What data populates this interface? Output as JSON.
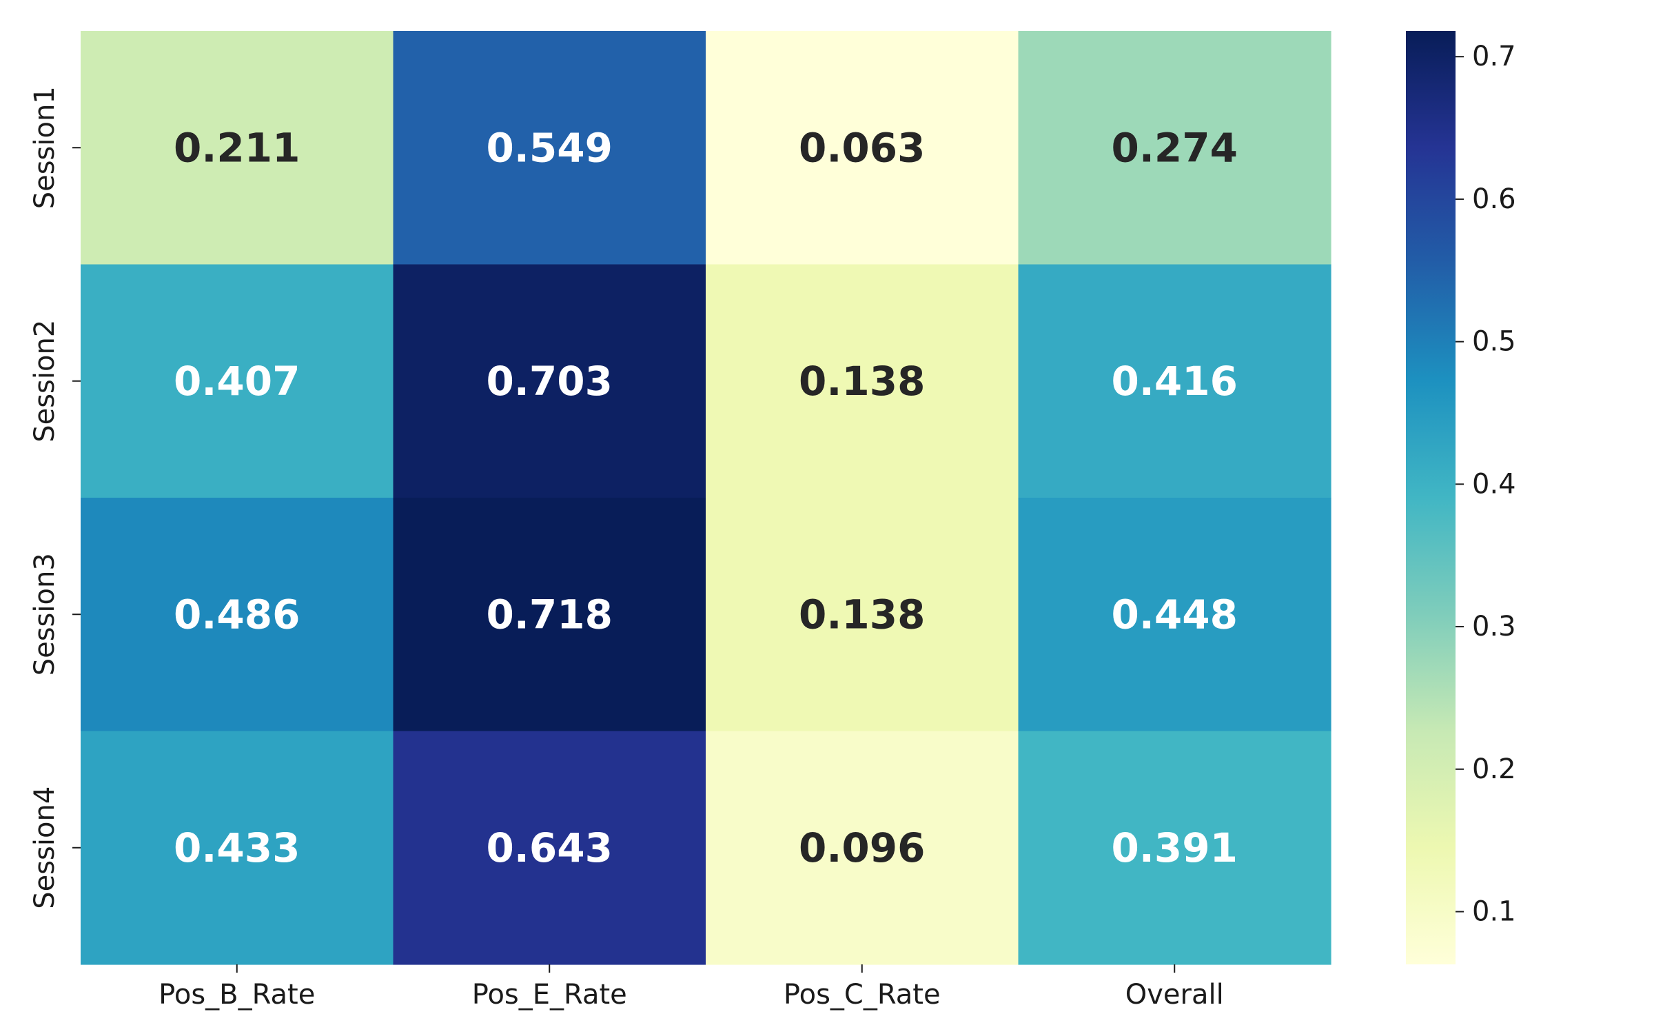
{
  "chart_data": {
    "type": "heatmap",
    "title": "",
    "xlabel": "",
    "ylabel": "",
    "x_categories": [
      "Pos_B_Rate",
      "Pos_E_Rate",
      "Pos_C_Rate",
      "Overall"
    ],
    "y_categories": [
      "Session1",
      "Session2",
      "Session3",
      "Session4"
    ],
    "values": [
      [
        0.211,
        0.549,
        0.063,
        0.274
      ],
      [
        0.407,
        0.703,
        0.138,
        0.416
      ],
      [
        0.486,
        0.718,
        0.138,
        0.448
      ],
      [
        0.433,
        0.643,
        0.096,
        0.391
      ]
    ],
    "value_format": "0.000",
    "colormap": "YlGnBu",
    "color_range": [
      0.063,
      0.718
    ],
    "colorbar": {
      "ticks": [
        0.1,
        0.2,
        0.3,
        0.4,
        0.5,
        0.6,
        0.7
      ],
      "tick_labels": [
        "0.1",
        "0.2",
        "0.3",
        "0.4",
        "0.5",
        "0.6",
        "0.7"
      ],
      "placement": "right"
    },
    "annotation_text_colors": {
      "light": "#ffffff",
      "dark": "#262626"
    },
    "grid": false
  }
}
